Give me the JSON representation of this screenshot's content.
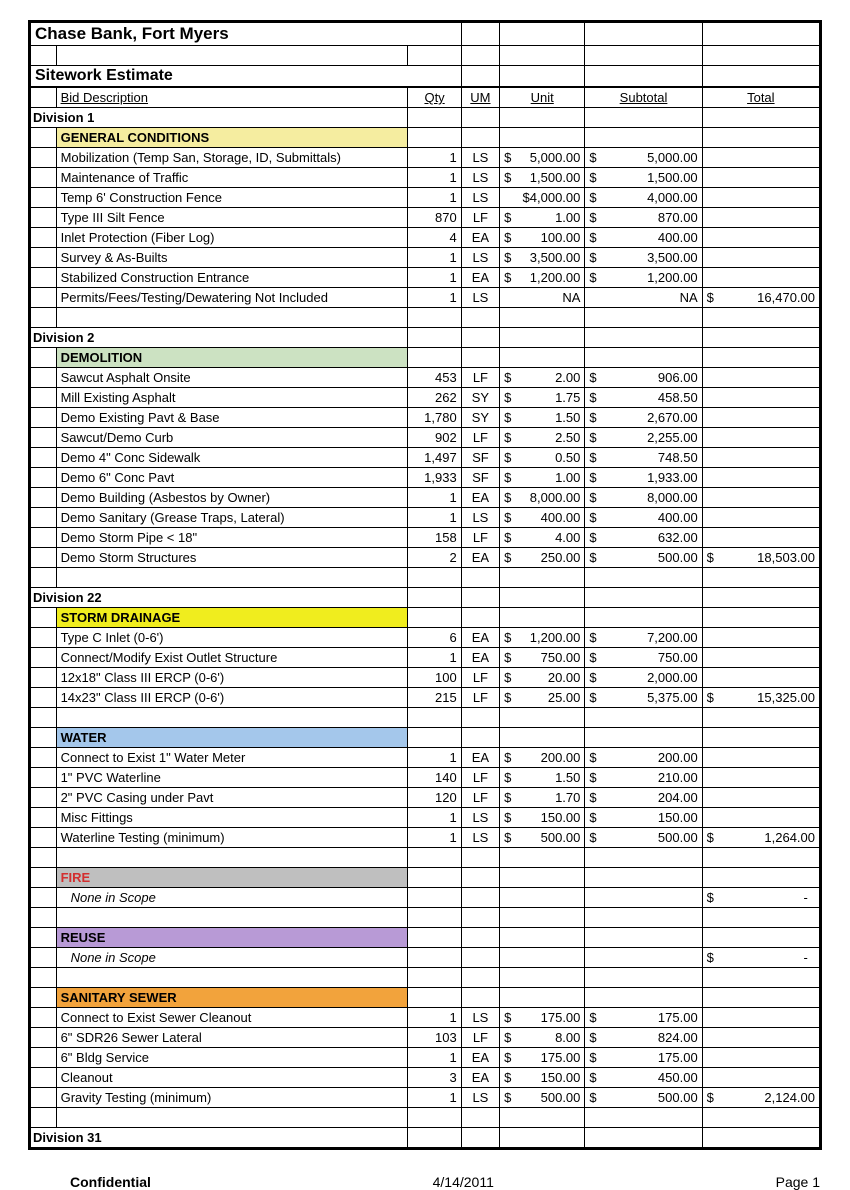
{
  "title": "Chase Bank, Fort Myers",
  "subtitle": "Sitework Estimate",
  "headers": {
    "desc": "Bid Description",
    "qty": "Qty",
    "um": "UM",
    "unit": "Unit",
    "subtotal": "Subtotal",
    "total": "Total"
  },
  "colors": {
    "general": "#f5eda0",
    "demolition": "#cce2c2",
    "storm": "#f0ed1e",
    "water": "#a4c7eb",
    "fire_bg": "#bfbfbf",
    "fire_text": "#d32f2f",
    "reuse": "#b89ad6",
    "sanitary": "#f2a33c"
  },
  "footer": {
    "confidential": "Confidential",
    "date": "4/14/2011",
    "page": "Page 1"
  },
  "rows": [
    {
      "type": "title"
    },
    {
      "type": "blank"
    },
    {
      "type": "subtitle"
    },
    {
      "type": "header"
    },
    {
      "type": "division",
      "label": "Division 1"
    },
    {
      "type": "section",
      "label": "GENERAL CONDITIONS",
      "colorKey": "general"
    },
    {
      "type": "item",
      "desc": "Mobilization (Temp San, Storage, ID, Submittals)",
      "qty": "1",
      "um": "LS",
      "unit": "5,000.00",
      "sub": "5,000.00"
    },
    {
      "type": "item",
      "desc": "Maintenance of Traffic",
      "qty": "1",
      "um": "LS",
      "unit": "1,500.00",
      "sub": "1,500.00"
    },
    {
      "type": "item",
      "desc": "Temp 6' Construction Fence",
      "qty": "1",
      "um": "LS",
      "unit": "$4,000.00",
      "unit_flat": true,
      "sub": "4,000.00"
    },
    {
      "type": "item",
      "desc": "Type III Silt Fence",
      "qty": "870",
      "um": "LF",
      "unit": "1.00",
      "sub": "870.00"
    },
    {
      "type": "item",
      "desc": "Inlet Protection (Fiber Log)",
      "qty": "4",
      "um": "EA",
      "unit": "100.00",
      "sub": "400.00"
    },
    {
      "type": "item",
      "desc": "Survey & As-Builts",
      "qty": "1",
      "um": "LS",
      "unit": "3,500.00",
      "sub": "3,500.00"
    },
    {
      "type": "item",
      "desc": "Stabilized Construction Entrance",
      "qty": "1",
      "um": "EA",
      "unit": "1,200.00",
      "sub": "1,200.00"
    },
    {
      "type": "item",
      "desc": "Permits/Fees/Testing/Dewatering Not Included",
      "qty": "1",
      "um": "LS",
      "unit_na": "NA",
      "sub_na": "NA",
      "total": "16,470.00"
    },
    {
      "type": "blank"
    },
    {
      "type": "division",
      "label": "Division 2"
    },
    {
      "type": "section",
      "label": "DEMOLITION",
      "colorKey": "demolition"
    },
    {
      "type": "item",
      "desc": "Sawcut Asphalt Onsite",
      "qty": "453",
      "um": "LF",
      "unit": "2.00",
      "sub": "906.00"
    },
    {
      "type": "item",
      "desc": "Mill Existing Asphalt",
      "qty": "262",
      "um": "SY",
      "unit": "1.75",
      "sub": "458.50"
    },
    {
      "type": "item",
      "desc": "Demo Existing Pavt & Base",
      "qty": "1,780",
      "um": "SY",
      "unit": "1.50",
      "sub": "2,670.00"
    },
    {
      "type": "item",
      "desc": "Sawcut/Demo Curb",
      "qty": "902",
      "um": "LF",
      "unit": "2.50",
      "sub": "2,255.00"
    },
    {
      "type": "item",
      "desc": "Demo 4\" Conc Sidewalk",
      "qty": "1,497",
      "um": "SF",
      "unit": "0.50",
      "sub": "748.50"
    },
    {
      "type": "item",
      "desc": "Demo 6\" Conc Pavt",
      "qty": "1,933",
      "um": "SF",
      "unit": "1.00",
      "sub": "1,933.00"
    },
    {
      "type": "item",
      "desc": "Demo Building (Asbestos by Owner)",
      "qty": "1",
      "um": "EA",
      "unit": "8,000.00",
      "sub": "8,000.00"
    },
    {
      "type": "item",
      "desc": "Demo Sanitary (Grease Traps, Lateral)",
      "qty": "1",
      "um": "LS",
      "unit": "400.00",
      "sub": "400.00"
    },
    {
      "type": "item",
      "desc": "Demo Storm Pipe < 18\"",
      "qty": "158",
      "um": "LF",
      "unit": "4.00",
      "sub": "632.00"
    },
    {
      "type": "item",
      "desc": "Demo Storm Structures",
      "qty": "2",
      "um": "EA",
      "unit": "250.00",
      "sub": "500.00",
      "total": "18,503.00"
    },
    {
      "type": "blank"
    },
    {
      "type": "division",
      "label": "Division 22"
    },
    {
      "type": "section",
      "label": "STORM DRAINAGE",
      "colorKey": "storm"
    },
    {
      "type": "item",
      "desc": "Type C Inlet (0-6')",
      "qty": "6",
      "um": "EA",
      "unit": "1,200.00",
      "sub": "7,200.00"
    },
    {
      "type": "item",
      "desc": "Connect/Modify Exist Outlet Structure",
      "qty": "1",
      "um": "EA",
      "unit": "750.00",
      "sub": "750.00"
    },
    {
      "type": "item",
      "desc": "12x18\" Class III ERCP (0-6')",
      "qty": "100",
      "um": "LF",
      "unit": "20.00",
      "sub": "2,000.00"
    },
    {
      "type": "item",
      "desc": "14x23\" Class III ERCP (0-6')",
      "qty": "215",
      "um": "LF",
      "unit": "25.00",
      "sub": "5,375.00",
      "total": "15,325.00"
    },
    {
      "type": "blank"
    },
    {
      "type": "section",
      "label": "WATER",
      "colorKey": "water"
    },
    {
      "type": "item",
      "desc": "Connect to Exist 1\" Water Meter",
      "qty": "1",
      "um": "EA",
      "unit": "200.00",
      "sub": "200.00"
    },
    {
      "type": "item",
      "desc": "1\" PVC Waterline",
      "qty": "140",
      "um": "LF",
      "unit": "1.50",
      "sub": "210.00"
    },
    {
      "type": "item",
      "desc": "2\" PVC Casing under Pavt",
      "qty": "120",
      "um": "LF",
      "unit": "1.70",
      "sub": "204.00"
    },
    {
      "type": "item",
      "desc": "Misc Fittings",
      "qty": "1",
      "um": "LS",
      "unit": "150.00",
      "sub": "150.00"
    },
    {
      "type": "item",
      "desc": "Waterline Testing (minimum)",
      "qty": "1",
      "um": "LS",
      "unit": "500.00",
      "sub": "500.00",
      "total": "1,264.00"
    },
    {
      "type": "blank"
    },
    {
      "type": "section",
      "label": "FIRE",
      "colorKey": "fire_bg",
      "textColorKey": "fire_text"
    },
    {
      "type": "none",
      "label": "None in Scope",
      "total_dash": true
    },
    {
      "type": "blank"
    },
    {
      "type": "section",
      "label": "REUSE",
      "colorKey": "reuse"
    },
    {
      "type": "none",
      "label": "None in Scope",
      "total_dash": true
    },
    {
      "type": "blank"
    },
    {
      "type": "section",
      "label": "SANITARY SEWER",
      "colorKey": "sanitary"
    },
    {
      "type": "item",
      "desc": "Connect to Exist Sewer Cleanout",
      "qty": "1",
      "um": "LS",
      "unit": "175.00",
      "sub": "175.00"
    },
    {
      "type": "item",
      "desc": "6\" SDR26 Sewer Lateral",
      "qty": "103",
      "um": "LF",
      "unit": "8.00",
      "sub": "824.00"
    },
    {
      "type": "item",
      "desc": "6\" Bldg Service",
      "qty": "1",
      "um": "EA",
      "unit": "175.00",
      "sub": "175.00"
    },
    {
      "type": "item",
      "desc": "Cleanout",
      "qty": "3",
      "um": "EA",
      "unit": "150.00",
      "sub": "450.00"
    },
    {
      "type": "item",
      "desc": "Gravity Testing (minimum)",
      "qty": "1",
      "um": "LS",
      "unit": "500.00",
      "sub": "500.00",
      "total": "2,124.00"
    },
    {
      "type": "blank"
    },
    {
      "type": "division",
      "label": "Division 31"
    }
  ]
}
